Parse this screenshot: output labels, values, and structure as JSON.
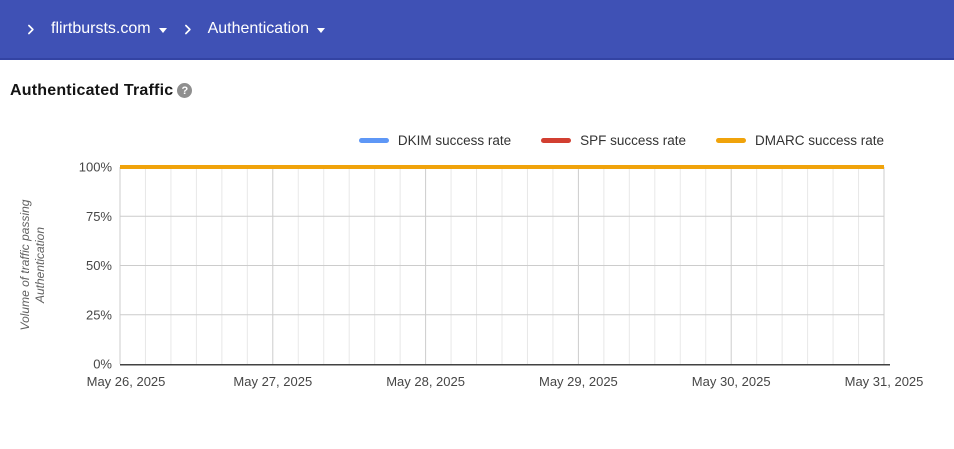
{
  "header": {
    "bg_color": "#3F51B5",
    "domain_selector": {
      "label": "flirtbursts.com"
    },
    "section_selector": {
      "label": "Authentication"
    }
  },
  "page": {
    "title": "Authenticated Traffic",
    "help_glyph": "?"
  },
  "chart_data": {
    "type": "line",
    "title": "Authenticated Traffic",
    "x": [
      "May 26, 2025",
      "May 27, 2025",
      "May 28, 2025",
      "May 29, 2025",
      "May 30, 2025",
      "May 31, 2025"
    ],
    "series": [
      {
        "name": "DKIM success rate",
        "color": "#5E97F6",
        "values": [
          100,
          100,
          100,
          100,
          100,
          100
        ]
      },
      {
        "name": "SPF success rate",
        "color": "#D23F31",
        "values": [
          100,
          100,
          100,
          100,
          100,
          100
        ]
      },
      {
        "name": "DMARC success rate",
        "color": "#F0A30B",
        "values": [
          100,
          100,
          100,
          100,
          100,
          100
        ]
      }
    ],
    "xlabel": "",
    "ylabel": "Volume of traffic passing Authentication",
    "ylabel_lines": [
      "Volume of traffic passing",
      "Authentication"
    ],
    "ylim": [
      0,
      100
    ],
    "ytick_values": [
      0,
      25,
      50,
      75,
      100
    ],
    "ytick_labels": [
      "0%",
      "25%",
      "50%",
      "75%",
      "100%"
    ],
    "grid": true,
    "x_minor_divisions": 6,
    "legend_position": "top-right"
  }
}
